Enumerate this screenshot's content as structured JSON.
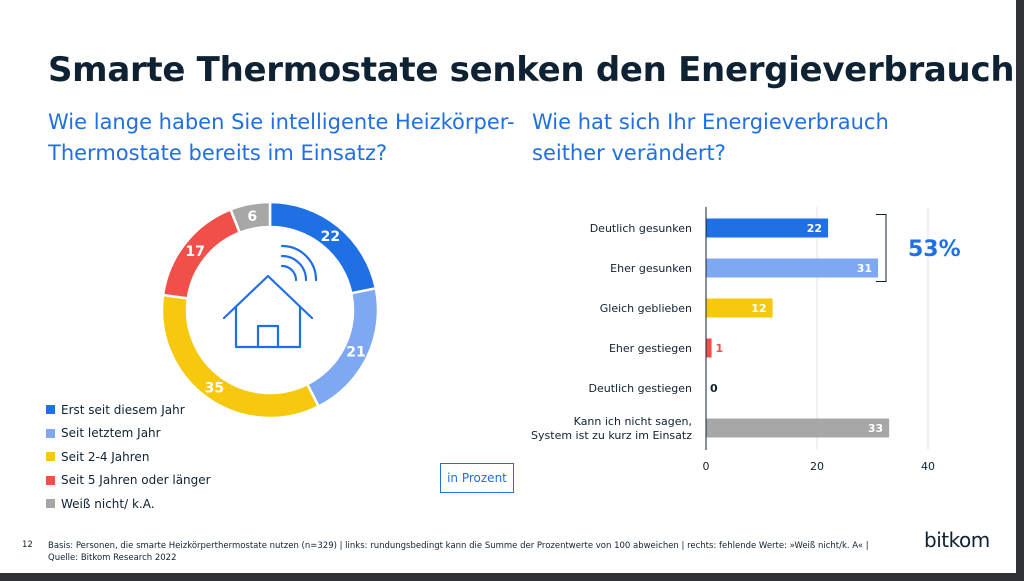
{
  "title": "Smarte Thermostate senken den Energieverbrauch",
  "questions": {
    "left": "Wie lange haben Sie intelligente Heizkörper-Thermostate bereits im Einsatz?",
    "right": "Wie hat sich Ihr Energieverbrauch seither verändert?"
  },
  "colors": {
    "blue": "#1f6fe5",
    "light_blue": "#7fa8f2",
    "yellow": "#f6c90e",
    "red": "#f05049",
    "gray": "#a7a7a7",
    "navy": "#0f2233"
  },
  "chart_data": [
    {
      "type": "pie",
      "variant": "donut",
      "title": "Wie lange haben Sie intelligente Heizkörper-Thermostate bereits im Einsatz?",
      "center_icon": "smart-home-icon",
      "slices": [
        {
          "label": "Erst seit diesem Jahr",
          "value": 22,
          "color": "#1f6fe5"
        },
        {
          "label": "Seit letztem Jahr",
          "value": 21,
          "color": "#7fa8f2"
        },
        {
          "label": "Seit 2-4 Jahren",
          "value": 35,
          "color": "#f6c90e"
        },
        {
          "label": "Seit 5 Jahren oder länger",
          "value": 17,
          "color": "#f05049"
        },
        {
          "label": "Weiß nicht/ k.A.",
          "value": 6,
          "color": "#a7a7a7"
        }
      ]
    },
    {
      "type": "bar",
      "orientation": "horizontal",
      "title": "Wie hat sich Ihr Energieverbrauch seither verändert?",
      "categories": [
        [
          "Deutlich gesunken"
        ],
        [
          "Eher gesunken"
        ],
        [
          "Gleich geblieben"
        ],
        [
          "Eher gestiegen"
        ],
        [
          "Deutlich gestiegen"
        ],
        [
          "Kann ich nicht sagen,",
          "System ist zu kurz im Einsatz"
        ]
      ],
      "values": [
        22,
        31,
        12,
        1,
        0,
        33
      ],
      "colors": [
        "#1f6fe5",
        "#7fa8f2",
        "#f6c90e",
        "#f05049",
        "#1f6fe5",
        "#a7a7a7"
      ],
      "xlim": [
        0,
        40
      ],
      "xticks": [
        0,
        20,
        40
      ],
      "annotation": {
        "label": "53%",
        "spans_categories": [
          0,
          1
        ]
      }
    }
  ],
  "unit_label": "in Prozent",
  "page_number": "12",
  "footer": {
    "line1": "Basis: Personen, die smarte Heizkörperthermostate nutzen (n=329) | links: rundungsbedingt kann die Summe der Prozentwerte von 100 abweichen | rechts: fehlende Werte: »Weiß nicht/k. A« |",
    "line2": "Quelle: Bitkom Research 2022"
  },
  "logo": "bitkom"
}
